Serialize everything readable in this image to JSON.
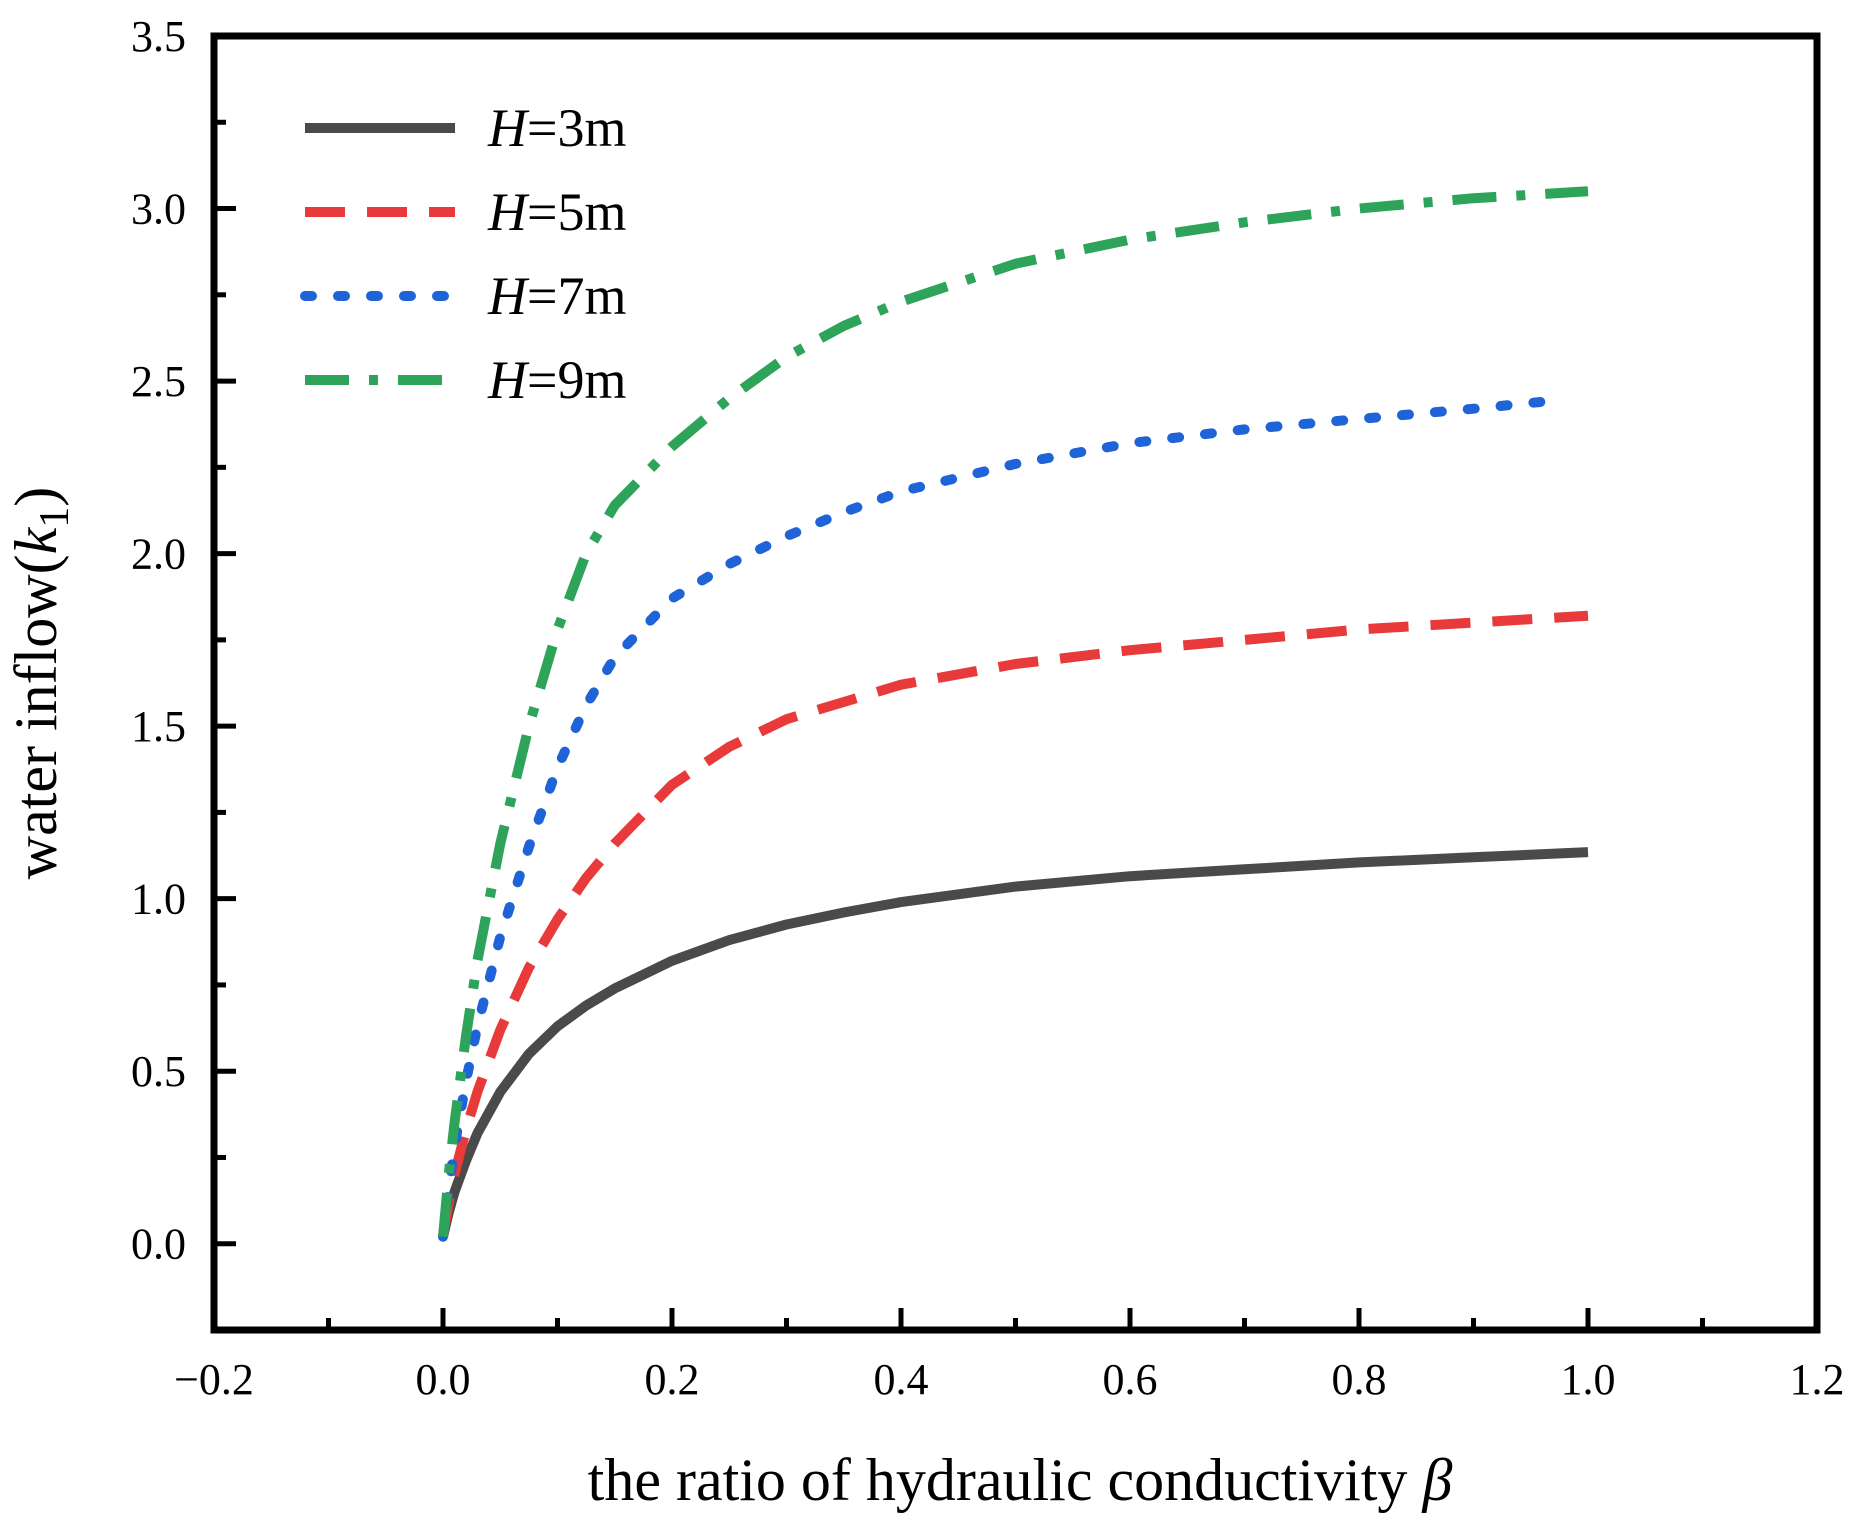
{
  "chart_data": {
    "type": "line",
    "title": "",
    "xlabel": "the ratio of hydraulic conductivity",
    "xlabel_symbol": "β",
    "ylabel": "water inflow(",
    "ylabel_symbol": "k",
    "ylabel_subscript": "1",
    "ylabel_suffix": ")",
    "xlim": [
      -0.2,
      1.2
    ],
    "ylim": [
      -0.25,
      3.5
    ],
    "xticks": [
      -0.2,
      0.0,
      0.2,
      0.4,
      0.6,
      0.8,
      1.0,
      1.2
    ],
    "xtick_labels": [
      "−0.2",
      "0.0",
      "0.2",
      "0.4",
      "0.6",
      "0.8",
      "1.0",
      "1.2"
    ],
    "yticks": [
      0.0,
      0.5,
      1.0,
      1.5,
      2.0,
      2.5,
      3.0,
      3.5
    ],
    "ytick_labels": [
      "0.0",
      "0.5",
      "1.0",
      "1.5",
      "2.0",
      "2.5",
      "3.0",
      "3.5"
    ],
    "grid": false,
    "legend_position": "top-left",
    "series": [
      {
        "name": "H=3m",
        "legend_italic": "H",
        "legend_rest": "=3m",
        "color": "#4a4a4a",
        "style": "solid",
        "x": [
          0.0,
          0.005,
          0.01,
          0.02,
          0.03,
          0.05,
          0.075,
          0.1,
          0.125,
          0.15,
          0.2,
          0.25,
          0.3,
          0.35,
          0.4,
          0.5,
          0.6,
          0.7,
          0.8,
          0.9,
          1.0
        ],
        "y": [
          0.02,
          0.09,
          0.15,
          0.24,
          0.32,
          0.44,
          0.55,
          0.63,
          0.69,
          0.74,
          0.82,
          0.88,
          0.925,
          0.96,
          0.99,
          1.035,
          1.065,
          1.085,
          1.105,
          1.12,
          1.135
        ]
      },
      {
        "name": "H=5m",
        "legend_italic": "H",
        "legend_rest": "=5m",
        "color": "#e83a3a",
        "style": "dashed",
        "x": [
          0.0,
          0.005,
          0.01,
          0.02,
          0.03,
          0.05,
          0.075,
          0.1,
          0.125,
          0.15,
          0.2,
          0.25,
          0.3,
          0.35,
          0.4,
          0.5,
          0.6,
          0.7,
          0.8,
          0.9,
          1.0
        ],
        "y": [
          0.02,
          0.12,
          0.2,
          0.33,
          0.44,
          0.62,
          0.8,
          0.94,
          1.06,
          1.16,
          1.33,
          1.44,
          1.52,
          1.57,
          1.62,
          1.68,
          1.72,
          1.75,
          1.78,
          1.8,
          1.82
        ]
      },
      {
        "name": "H=7m",
        "legend_italic": "H",
        "legend_rest": "=7m",
        "color": "#1f63d8",
        "style": "dotted",
        "x": [
          0.0,
          0.005,
          0.01,
          0.02,
          0.03,
          0.05,
          0.075,
          0.1,
          0.125,
          0.15,
          0.2,
          0.25,
          0.3,
          0.35,
          0.4,
          0.5,
          0.6,
          0.7,
          0.8,
          0.9,
          0.96
        ],
        "y": [
          0.02,
          0.16,
          0.28,
          0.47,
          0.63,
          0.89,
          1.15,
          1.38,
          1.56,
          1.7,
          1.87,
          1.97,
          2.05,
          2.12,
          2.18,
          2.26,
          2.32,
          2.36,
          2.39,
          2.42,
          2.44
        ]
      },
      {
        "name": "H=9m",
        "legend_italic": "H",
        "legend_rest": "=9m",
        "color": "#2ea35a",
        "style": "dashdot",
        "x": [
          0.0,
          0.005,
          0.01,
          0.02,
          0.03,
          0.05,
          0.075,
          0.1,
          0.125,
          0.15,
          0.2,
          0.25,
          0.3,
          0.35,
          0.4,
          0.5,
          0.6,
          0.7,
          0.8,
          0.9,
          1.0
        ],
        "y": [
          0.02,
          0.2,
          0.35,
          0.6,
          0.82,
          1.16,
          1.5,
          1.78,
          2.0,
          2.14,
          2.31,
          2.45,
          2.57,
          2.66,
          2.73,
          2.84,
          2.91,
          2.96,
          3.0,
          3.03,
          3.05
        ]
      }
    ]
  }
}
